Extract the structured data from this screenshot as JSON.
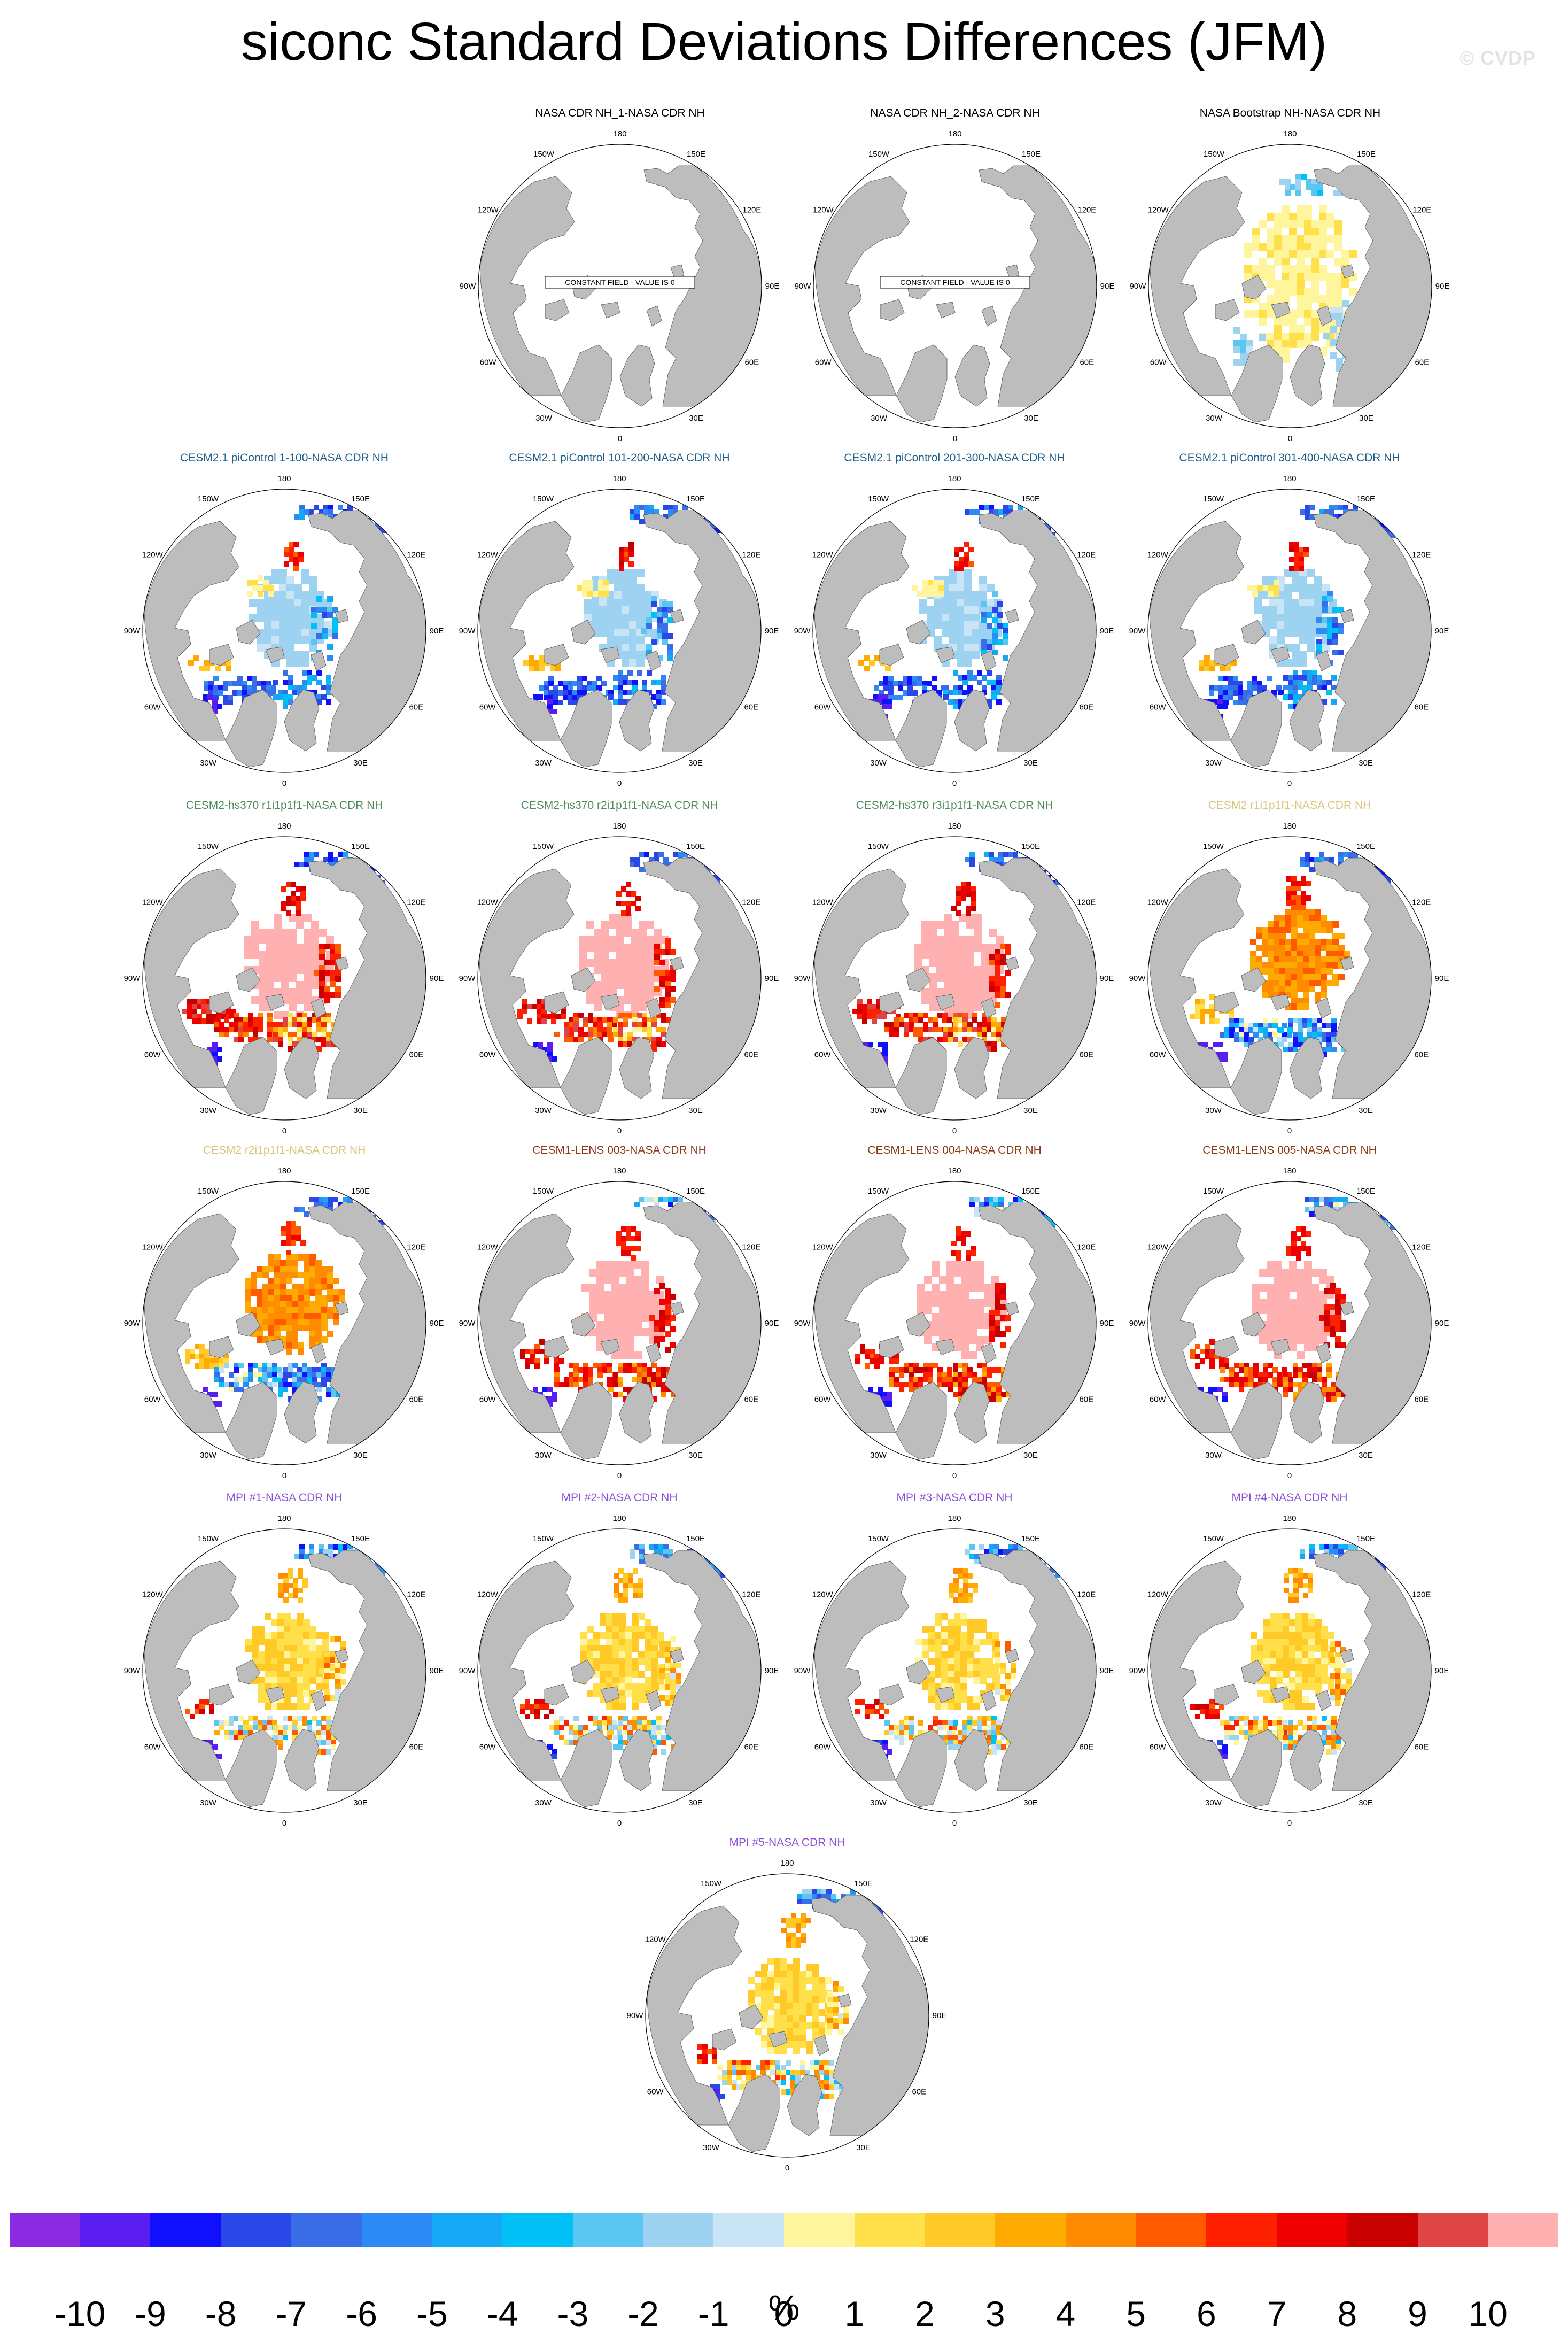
{
  "title": "siconc Standard Deviations Differences (JFM)",
  "watermark": "© CVDP",
  "constant_field_label": "CONSTANT FIELD - VALUE IS 0",
  "longitude_labels": [
    "180",
    "150E",
    "120E",
    "90E",
    "60E",
    "30E",
    "0",
    "30W",
    "60W",
    "90W",
    "120W",
    "150W"
  ],
  "colors": {
    "land": "#bdbdbd",
    "ocean": "#ffffff",
    "coast": "#555555"
  },
  "panels": [
    {
      "title": "NASA CDR NH_1-NASA CDR NH",
      "title_color": "#000000",
      "pattern": "constant"
    },
    {
      "title": "NASA CDR NH_2-NASA CDR NH",
      "title_color": "#000000",
      "pattern": "constant"
    },
    {
      "title": "NASA Bootstrap NH-NASA CDR NH",
      "title_color": "#000000",
      "pattern": "bootstrap"
    },
    {
      "title": "CESM2.1 piControl 1-100-NASA CDR NH",
      "title_color": "#1f5f8b",
      "pattern": "picontrol"
    },
    {
      "title": "CESM2.1 piControl 101-200-NASA CDR NH",
      "title_color": "#1f5f8b",
      "pattern": "picontrol"
    },
    {
      "title": "CESM2.1 piControl 201-300-NASA CDR NH",
      "title_color": "#1f5f8b",
      "pattern": "picontrol"
    },
    {
      "title": "CESM2.1 piControl 301-400-NASA CDR NH",
      "title_color": "#1f5f8b",
      "pattern": "picontrol"
    },
    {
      "title": "CESM2-hs370 r1i1p1f1-NASA CDR NH",
      "title_color": "#4e8a5a",
      "pattern": "hs370"
    },
    {
      "title": "CESM2-hs370 r2i1p1f1-NASA CDR NH",
      "title_color": "#4e8a5a",
      "pattern": "hs370"
    },
    {
      "title": "CESM2-hs370 r3i1p1f1-NASA CDR NH",
      "title_color": "#4e8a5a",
      "pattern": "hs370"
    },
    {
      "title": "CESM2 r1i1p1f1-NASA CDR NH",
      "title_color": "#d8c47a",
      "pattern": "cesm2"
    },
    {
      "title": "CESM2 r2i1p1f1-NASA CDR NH",
      "title_color": "#d8c47a",
      "pattern": "cesm2"
    },
    {
      "title": "CESM1-LENS 003-NASA CDR NH",
      "title_color": "#8b3a1a",
      "pattern": "lens"
    },
    {
      "title": "CESM1-LENS 004-NASA CDR NH",
      "title_color": "#8b3a1a",
      "pattern": "lens"
    },
    {
      "title": "CESM1-LENS 005-NASA CDR NH",
      "title_color": "#8b3a1a",
      "pattern": "lens"
    },
    {
      "title": "MPI #1-NASA CDR NH",
      "title_color": "#8a4fd8",
      "pattern": "mpi"
    },
    {
      "title": "MPI #2-NASA CDR NH",
      "title_color": "#8a4fd8",
      "pattern": "mpi"
    },
    {
      "title": "MPI #3-NASA CDR NH",
      "title_color": "#8a4fd8",
      "pattern": "mpi"
    },
    {
      "title": "MPI #4-NASA CDR NH",
      "title_color": "#8a4fd8",
      "pattern": "mpi"
    },
    {
      "title": "MPI #5-NASA CDR NH",
      "title_color": "#8a4fd8",
      "pattern": "mpi"
    }
  ],
  "colorbar": {
    "labels": [
      "-10",
      "-9",
      "-8",
      "-7",
      "-6",
      "-5",
      "-4",
      "-3",
      "-2",
      "-1",
      "0",
      "1",
      "2",
      "3",
      "4",
      "5",
      "6",
      "7",
      "8",
      "9",
      "10"
    ],
    "unit": "%",
    "colors": [
      "#8a2be2",
      "#5a1ef0",
      "#1010ff",
      "#2a48e8",
      "#3a6ee8",
      "#2d8bf5",
      "#15a8f5",
      "#00c0f5",
      "#5cc6f2",
      "#9dd3f0",
      "#c8e4f5",
      "#fff59d",
      "#ffe04a",
      "#ffca28",
      "#ffaa00",
      "#ff8c00",
      "#ff5a00",
      "#ff2000",
      "#ee0000",
      "#c80000",
      "#e04545",
      "#ffb0b0"
    ]
  }
}
